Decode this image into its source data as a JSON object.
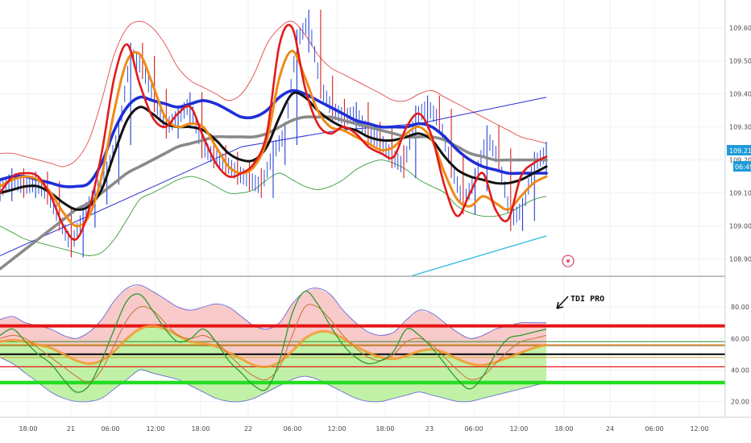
{
  "chart_data": [
    {
      "type": "line",
      "panel": "price",
      "grid": true,
      "ylim": [
        108.86,
        109.66
      ],
      "y_ticks": [
        "109.600",
        "109.500",
        "109.400",
        "109.300",
        "109.200",
        "109.100",
        "109.000",
        "108.900"
      ],
      "last_price": "109.213",
      "countdown": "06:49",
      "series": [
        {
          "role": "price-candles",
          "color": "#1f3fd6",
          "values": [
            109.11,
            109.14,
            109.12,
            109.13,
            109.1,
            109.02,
            108.94,
            109.03,
            109.1,
            109.16,
            109.28,
            109.52,
            109.48,
            109.38,
            109.3,
            109.33,
            109.37,
            109.24,
            109.21,
            109.19,
            109.16,
            109.14,
            109.12,
            109.22,
            109.28,
            109.56,
            109.62,
            109.42,
            109.35,
            109.33,
            109.34,
            109.28,
            109.26,
            109.21,
            109.18,
            109.33,
            109.36,
            109.32,
            109.18,
            109.07,
            109.14,
            109.27,
            109.2,
            109.02,
            109.05,
            109.19,
            109.22
          ]
        },
        {
          "role": "fast-ma",
          "color": "#e21b1b",
          "values": [
            109.1,
            109.15,
            109.16,
            109.15,
            109.09,
            109.0,
            108.96,
            109.05,
            109.22,
            109.45,
            109.55,
            109.43,
            109.33,
            109.3,
            109.34,
            109.36,
            109.27,
            109.19,
            109.15,
            109.16,
            109.19,
            109.28,
            109.55,
            109.6,
            109.42,
            109.31,
            109.28,
            109.3,
            109.28,
            109.24,
            109.22,
            109.21,
            109.3,
            109.34,
            109.27,
            109.12,
            109.03,
            109.1,
            109.16,
            109.05,
            109.02,
            109.15,
            109.19,
            109.21
          ]
        },
        {
          "role": "mid-ma",
          "color": "#f08a16",
          "values": [
            109.12,
            109.14,
            109.15,
            109.14,
            109.1,
            109.04,
            109.0,
            109.03,
            109.15,
            109.35,
            109.5,
            109.52,
            109.43,
            109.33,
            109.3,
            109.31,
            109.3,
            109.24,
            109.18,
            109.16,
            109.18,
            109.26,
            109.45,
            109.53,
            109.45,
            109.35,
            109.3,
            109.29,
            109.27,
            109.25,
            109.23,
            109.24,
            109.28,
            109.3,
            109.26,
            109.16,
            109.08,
            109.06,
            109.09,
            109.07,
            109.05,
            109.09,
            109.13,
            109.15
          ]
        },
        {
          "role": "base-ma",
          "color": "#111111",
          "values": [
            109.1,
            109.11,
            109.12,
            109.12,
            109.1,
            109.07,
            109.05,
            109.06,
            109.11,
            109.22,
            109.32,
            109.36,
            109.34,
            109.31,
            109.3,
            109.3,
            109.29,
            109.26,
            109.22,
            109.2,
            109.2,
            109.24,
            109.33,
            109.4,
            109.39,
            109.35,
            109.32,
            109.3,
            109.29,
            109.27,
            109.26,
            109.26,
            109.27,
            109.28,
            109.26,
            109.21,
            109.17,
            109.15,
            109.14,
            109.13,
            109.13,
            109.14,
            109.16,
            109.18
          ]
        },
        {
          "role": "trend-ma",
          "color": "#1e2fd6",
          "values": [
            109.14,
            109.15,
            109.15,
            109.14,
            109.13,
            109.12,
            109.12,
            109.13,
            109.19,
            109.29,
            109.36,
            109.39,
            109.38,
            109.37,
            109.36,
            109.37,
            109.38,
            109.37,
            109.35,
            109.33,
            109.33,
            109.35,
            109.39,
            109.41,
            109.4,
            109.38,
            109.36,
            109.34,
            109.32,
            109.31,
            109.3,
            109.3,
            109.3,
            109.31,
            109.3,
            109.27,
            109.23,
            109.2,
            109.18,
            109.17,
            109.16,
            109.16,
            109.16,
            109.16
          ]
        },
        {
          "role": "slow-ma",
          "color": "#8a8a8a",
          "values": [
            108.87,
            108.9,
            108.93,
            108.96,
            108.99,
            109.02,
            109.05,
            109.07,
            109.1,
            109.13,
            109.16,
            109.18,
            109.2,
            109.22,
            109.24,
            109.25,
            109.26,
            109.27,
            109.27,
            109.27,
            109.27,
            109.28,
            109.3,
            109.32,
            109.33,
            109.33,
            109.33,
            109.32,
            109.31,
            109.3,
            109.29,
            109.28,
            109.27,
            109.27,
            109.27,
            109.26,
            109.24,
            109.22,
            109.21,
            109.2,
            109.2,
            109.2,
            109.2,
            109.2
          ]
        },
        {
          "role": "upper-band",
          "color": "#e24a4a",
          "values": [
            109.22,
            109.22,
            109.21,
            109.2,
            109.19,
            109.18,
            109.2,
            109.26,
            109.38,
            109.52,
            109.6,
            109.62,
            109.6,
            109.55,
            109.48,
            109.44,
            109.42,
            109.4,
            109.38,
            109.4,
            109.46,
            109.55,
            109.6,
            109.62,
            109.58,
            109.52,
            109.48,
            109.46,
            109.44,
            109.42,
            109.4,
            109.38,
            109.38,
            109.4,
            109.41,
            109.39,
            109.37,
            109.35,
            109.33,
            109.31,
            109.29,
            109.27,
            109.26,
            109.25
          ]
        },
        {
          "role": "lower-band",
          "color": "#3d9a3d",
          "values": [
            109.0,
            108.98,
            108.96,
            108.95,
            108.94,
            108.93,
            108.92,
            108.91,
            108.92,
            108.96,
            109.02,
            109.08,
            109.1,
            109.12,
            109.14,
            109.15,
            109.14,
            109.12,
            109.1,
            109.1,
            109.11,
            109.14,
            109.16,
            109.14,
            109.12,
            109.11,
            109.12,
            109.14,
            109.17,
            109.19,
            109.2,
            109.19,
            109.17,
            109.14,
            109.12,
            109.1,
            109.06,
            109.04,
            109.03,
            109.03,
            109.04,
            109.06,
            109.08,
            109.09
          ]
        },
        {
          "role": "trend-line",
          "color": "#2a2ad0",
          "values": [
            108.91,
            109.24,
            109.29,
            109.31,
            109.39
          ]
        },
        {
          "role": "projection-line",
          "color": "#2fb8e0",
          "values": [
            108.85,
            108.97
          ]
        }
      ]
    },
    {
      "type": "area",
      "panel": "oscillator",
      "grid": true,
      "ylim": [
        12,
        97
      ],
      "y_ticks": [
        "80.00",
        "60.00",
        "40.00",
        "20.00"
      ],
      "levels": [
        68,
        58,
        56,
        50,
        42,
        32
      ],
      "x_ticks": [
        "18:00",
        "21",
        "06:00",
        "12:00",
        "18:00",
        "22",
        "06:00",
        "12:00",
        "18:00",
        "23",
        "06:00",
        "12:00",
        "18:00",
        "24",
        "06:00",
        "12:00"
      ],
      "series": [
        {
          "role": "upper-band",
          "color": "#6a6ad8",
          "values": [
            72,
            74,
            70,
            68,
            66,
            62,
            60,
            64,
            72,
            84,
            92,
            94,
            90,
            85,
            80,
            78,
            80,
            82,
            80,
            74,
            68,
            66,
            70,
            82,
            90,
            92,
            88,
            78,
            70,
            64,
            62,
            64,
            72,
            78,
            76,
            70,
            64,
            60,
            62,
            66,
            68,
            70,
            70,
            70
          ]
        },
        {
          "role": "lower-band",
          "color": "#6a6ad8",
          "values": [
            48,
            44,
            38,
            32,
            26,
            22,
            20,
            20,
            22,
            28,
            34,
            40,
            38,
            36,
            34,
            30,
            26,
            22,
            20,
            20,
            22,
            26,
            30,
            34,
            36,
            34,
            30,
            26,
            22,
            20,
            20,
            22,
            24,
            26,
            24,
            22,
            20,
            20,
            22,
            24,
            26,
            28,
            30,
            32
          ]
        },
        {
          "role": "rsi-line",
          "color": "#2f9a2f",
          "values": [
            62,
            66,
            58,
            50,
            44,
            34,
            26,
            30,
            46,
            66,
            84,
            88,
            78,
            66,
            58,
            60,
            66,
            58,
            46,
            38,
            30,
            28,
            46,
            76,
            90,
            82,
            68,
            56,
            48,
            44,
            46,
            52,
            66,
            62,
            54,
            44,
            34,
            28,
            36,
            50,
            60,
            62,
            64,
            66
          ]
        },
        {
          "role": "signal-line",
          "color": "#c87030",
          "values": [
            60,
            62,
            60,
            54,
            48,
            42,
            36,
            32,
            40,
            56,
            72,
            80,
            78,
            70,
            62,
            60,
            62,
            58,
            50,
            42,
            36,
            34,
            42,
            62,
            80,
            80,
            72,
            62,
            54,
            48,
            46,
            50,
            58,
            60,
            56,
            48,
            40,
            34,
            36,
            44,
            52,
            58,
            60,
            62
          ]
        },
        {
          "role": "baseline",
          "color": "#f29a2a",
          "values": [
            58,
            59,
            58,
            56,
            54,
            50,
            46,
            44,
            46,
            52,
            60,
            66,
            68,
            66,
            62,
            58,
            57,
            55,
            51,
            47,
            43,
            42,
            45,
            52,
            60,
            64,
            64,
            60,
            55,
            51,
            48,
            47,
            49,
            52,
            53,
            51,
            47,
            44,
            43,
            45,
            48,
            51,
            54,
            56
          ]
        }
      ]
    }
  ],
  "annotation": {
    "label": "TDI PRO"
  }
}
